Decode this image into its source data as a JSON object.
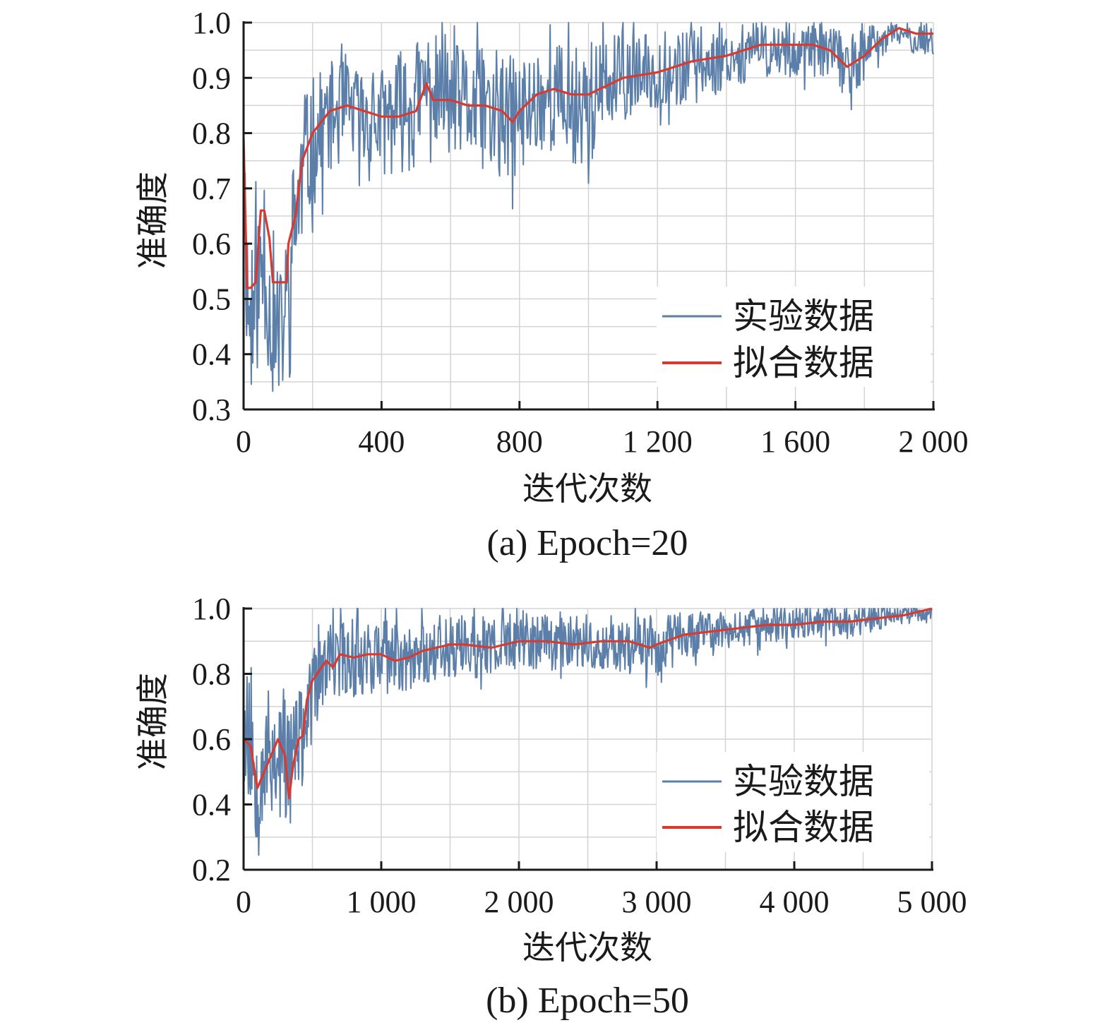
{
  "chart_data": [
    {
      "id": "a",
      "type": "line",
      "caption": "(a) Epoch=20",
      "xlabel": "迭代次数",
      "ylabel": "准确度",
      "xlim": [
        0,
        2000
      ],
      "ylim": [
        0.3,
        1.0
      ],
      "xticks": [
        0,
        400,
        800,
        1200,
        1600,
        2000
      ],
      "xtick_labels": [
        "0",
        "400",
        "800",
        "1 200",
        "1 600",
        "2 000"
      ],
      "xminor_step": 200,
      "yticks": [
        0.3,
        0.4,
        0.5,
        0.6,
        0.7,
        0.8,
        0.9,
        1.0
      ],
      "ytick_labels": [
        "0.3",
        "0.4",
        "0.5",
        "0.6",
        "0.7",
        "0.8",
        "0.9",
        "1.0"
      ],
      "yminor_step": 0.05,
      "grid": true,
      "legend_position": "bottom-right",
      "series": [
        {
          "name": "实验数据",
          "color": "#5b7fa8",
          "style": "noisy",
          "x": [
            0,
            10,
            20,
            35,
            60,
            80,
            100,
            115,
            130,
            150,
            170,
            200,
            250,
            300,
            350,
            400,
            450,
            500,
            530,
            600,
            650,
            700,
            750,
            800,
            850,
            900,
            950,
            1000,
            1100,
            1200,
            1300,
            1400,
            1500,
            1550,
            1600,
            1650,
            1700,
            1750,
            1800,
            1850,
            1900,
            1950,
            2000
          ],
          "values": [
            0.79,
            0.52,
            0.45,
            0.5,
            0.58,
            0.45,
            0.42,
            0.45,
            0.52,
            0.65,
            0.72,
            0.78,
            0.83,
            0.84,
            0.83,
            0.82,
            0.84,
            0.85,
            0.89,
            0.86,
            0.85,
            0.84,
            0.82,
            0.83,
            0.86,
            0.87,
            0.85,
            0.86,
            0.9,
            0.91,
            0.92,
            0.94,
            0.95,
            0.95,
            0.95,
            0.95,
            0.95,
            0.92,
            0.94,
            0.97,
            0.98,
            0.97,
            0.97
          ],
          "noise": [
            0.12,
            0.15,
            0.15,
            0.15,
            0.15,
            0.13,
            0.12,
            0.12,
            0.14,
            0.15,
            0.13,
            0.12,
            0.1,
            0.09,
            0.09,
            0.1,
            0.11,
            0.12,
            0.1,
            0.1,
            0.11,
            0.11,
            0.12,
            0.11,
            0.1,
            0.1,
            0.11,
            0.11,
            0.08,
            0.07,
            0.07,
            0.06,
            0.05,
            0.05,
            0.05,
            0.05,
            0.05,
            0.06,
            0.05,
            0.03,
            0.02,
            0.03,
            0.03
          ]
        },
        {
          "name": "拟合数据",
          "color": "#d93a2f",
          "style": "smooth",
          "x": [
            0,
            10,
            20,
            35,
            50,
            60,
            75,
            85,
            100,
            115,
            125,
            130,
            150,
            170,
            200,
            250,
            300,
            350,
            400,
            450,
            500,
            530,
            550,
            600,
            650,
            700,
            750,
            780,
            800,
            850,
            900,
            950,
            1000,
            1100,
            1200,
            1300,
            1400,
            1500,
            1550,
            1600,
            1650,
            1700,
            1750,
            1800,
            1850,
            1900,
            1950,
            2000
          ],
          "values": [
            0.79,
            0.52,
            0.52,
            0.53,
            0.66,
            0.66,
            0.61,
            0.53,
            0.53,
            0.53,
            0.53,
            0.6,
            0.65,
            0.75,
            0.8,
            0.84,
            0.85,
            0.84,
            0.83,
            0.83,
            0.84,
            0.89,
            0.86,
            0.86,
            0.85,
            0.85,
            0.84,
            0.82,
            0.84,
            0.87,
            0.88,
            0.87,
            0.87,
            0.9,
            0.91,
            0.93,
            0.94,
            0.96,
            0.96,
            0.96,
            0.96,
            0.95,
            0.92,
            0.94,
            0.97,
            0.99,
            0.98,
            0.98
          ]
        }
      ]
    },
    {
      "id": "b",
      "type": "line",
      "caption": "(b) Epoch=50",
      "xlabel": "迭代次数",
      "ylabel": "准确度",
      "xlim": [
        0,
        5000
      ],
      "ylim": [
        0.2,
        1.0
      ],
      "xticks": [
        0,
        1000,
        2000,
        3000,
        4000,
        5000
      ],
      "xtick_labels": [
        "0",
        "1 000",
        "2 000",
        "3 000",
        "4 000",
        "5 000"
      ],
      "xminor_step": 500,
      "yticks": [
        0.2,
        0.4,
        0.6,
        0.8,
        1.0
      ],
      "ytick_labels": [
        "0.2",
        "0.4",
        "0.6",
        "0.8",
        "1.0"
      ],
      "yminor_step": 0.1,
      "grid": true,
      "legend_position": "bottom-right",
      "series": [
        {
          "name": "实验数据",
          "color": "#5b7fa8",
          "style": "noisy",
          "x": [
            0,
            50,
            100,
            150,
            200,
            250,
            300,
            350,
            400,
            450,
            500,
            600,
            700,
            800,
            900,
            1000,
            1200,
            1400,
            1500,
            1600,
            1800,
            2000,
            2200,
            2400,
            2600,
            2800,
            3000,
            3200,
            3400,
            3600,
            3800,
            4000,
            4200,
            4400,
            4600,
            4800,
            5000
          ],
          "values": [
            0.62,
            0.57,
            0.5,
            0.55,
            0.55,
            0.55,
            0.5,
            0.55,
            0.6,
            0.65,
            0.75,
            0.82,
            0.85,
            0.85,
            0.86,
            0.85,
            0.85,
            0.88,
            0.89,
            0.88,
            0.88,
            0.9,
            0.9,
            0.9,
            0.89,
            0.89,
            0.89,
            0.92,
            0.92,
            0.94,
            0.94,
            0.96,
            0.96,
            0.96,
            0.97,
            0.98,
            0.99
          ],
          "noise": [
            0.18,
            0.2,
            0.22,
            0.2,
            0.2,
            0.2,
            0.22,
            0.2,
            0.15,
            0.12,
            0.12,
            0.12,
            0.12,
            0.12,
            0.12,
            0.12,
            0.11,
            0.1,
            0.1,
            0.1,
            0.1,
            0.09,
            0.09,
            0.09,
            0.09,
            0.09,
            0.09,
            0.07,
            0.07,
            0.06,
            0.06,
            0.05,
            0.05,
            0.05,
            0.04,
            0.03,
            0.02
          ]
        },
        {
          "name": "拟合数据",
          "color": "#d93a2f",
          "style": "smooth",
          "x": [
            0,
            50,
            100,
            150,
            200,
            250,
            300,
            330,
            360,
            400,
            430,
            460,
            500,
            600,
            650,
            700,
            800,
            900,
            1000,
            1100,
            1200,
            1300,
            1400,
            1500,
            1600,
            1800,
            2000,
            2200,
            2400,
            2600,
            2800,
            2950,
            3000,
            3200,
            3400,
            3600,
            3800,
            4000,
            4200,
            4400,
            4600,
            4800,
            5000
          ],
          "values": [
            0.6,
            0.58,
            0.45,
            0.5,
            0.55,
            0.6,
            0.55,
            0.42,
            0.52,
            0.6,
            0.61,
            0.72,
            0.78,
            0.84,
            0.82,
            0.86,
            0.85,
            0.86,
            0.86,
            0.84,
            0.85,
            0.87,
            0.88,
            0.89,
            0.89,
            0.88,
            0.9,
            0.9,
            0.89,
            0.9,
            0.9,
            0.88,
            0.89,
            0.92,
            0.93,
            0.94,
            0.95,
            0.95,
            0.96,
            0.96,
            0.97,
            0.98,
            1.0
          ]
        }
      ]
    }
  ]
}
